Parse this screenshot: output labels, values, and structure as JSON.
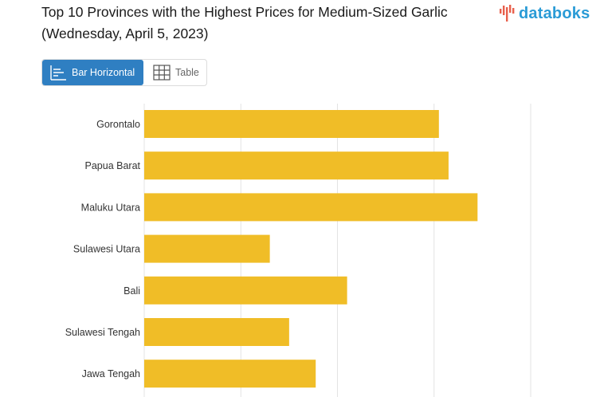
{
  "header": {
    "title": "Top 10 Provinces with the Highest Prices for Medium-Sized Garlic (Wednesday, April 5, 2023)",
    "logo_text": "databoks",
    "logo_icon": "databoks-bars-logo",
    "brand_color": "#2a9bd6",
    "logo_mark_color": "#e8604c"
  },
  "tabs": [
    {
      "label": "Bar Horizontal",
      "icon": "bar-horizontal-icon",
      "active": true
    },
    {
      "label": "Table",
      "icon": "table-grid-icon",
      "active": false
    }
  ],
  "chart_data": {
    "type": "bar",
    "orientation": "horizontal",
    "title": "Top 10 Provinces with the Highest Prices for Medium-Sized Garlic (Wednesday, April 5, 2023)",
    "categories": [
      "Gorontalo",
      "Papua Barat",
      "Maluku Utara",
      "Sulawesi Utara",
      "Bali",
      "Sulawesi Tengah",
      "Jawa Tengah"
    ],
    "values": [
      61000,
      63000,
      69000,
      26000,
      42000,
      30000,
      35500
    ],
    "xlim": [
      0,
      80000
    ],
    "grid": true,
    "bar_color": "#f0bd27",
    "grid_color": "#e3e3e3"
  }
}
